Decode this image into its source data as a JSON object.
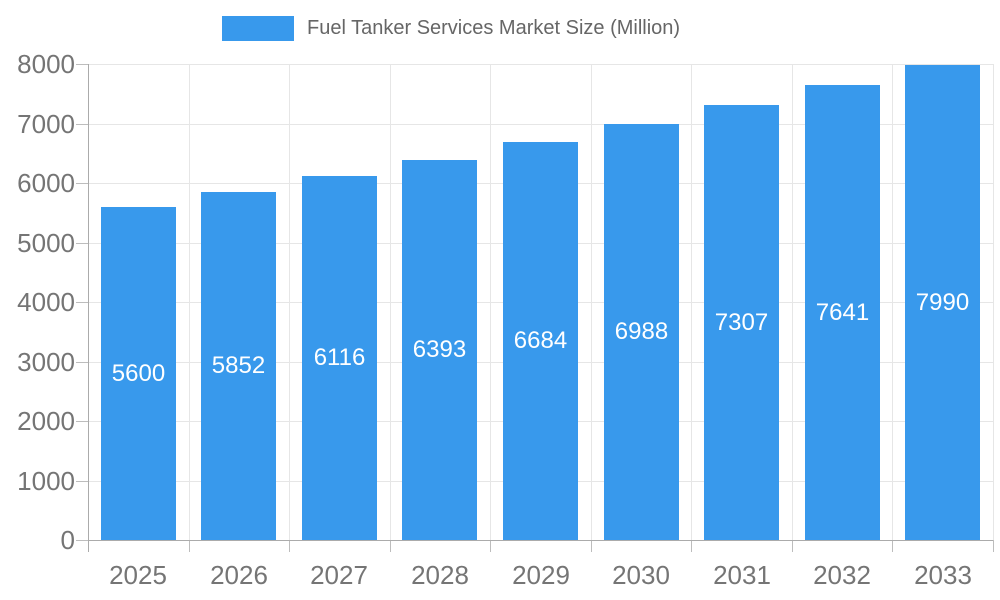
{
  "legend": {
    "label": "Fuel Tanker Services Market Size (Million)"
  },
  "chart_data": {
    "type": "bar",
    "title": "Fuel Tanker Services Market Size (Million)",
    "series_name": "Fuel Tanker Services Market Size (Million)",
    "categories": [
      "2025",
      "2026",
      "2027",
      "2028",
      "2029",
      "2030",
      "2031",
      "2032",
      "2033"
    ],
    "values": [
      5600,
      5852,
      6116,
      6393,
      6684,
      6988,
      7307,
      7641,
      7990
    ],
    "xlabel": "",
    "ylabel": "",
    "ylim": [
      0,
      8000
    ],
    "ytick_interval": 1000,
    "y_tick_labels": [
      "0",
      "1000",
      "2000",
      "3000",
      "4000",
      "5000",
      "6000",
      "7000",
      "8000"
    ],
    "grid": true,
    "legend_position": "top"
  },
  "colors": {
    "background": "#ffffff",
    "bar": "#3899ec",
    "bar_label": "#ffffff",
    "grid": "#e6e6e6",
    "axis": "#ababab",
    "tick": "#bdbdbd",
    "axis_label": "#757575",
    "legend_text": "#666666"
  }
}
